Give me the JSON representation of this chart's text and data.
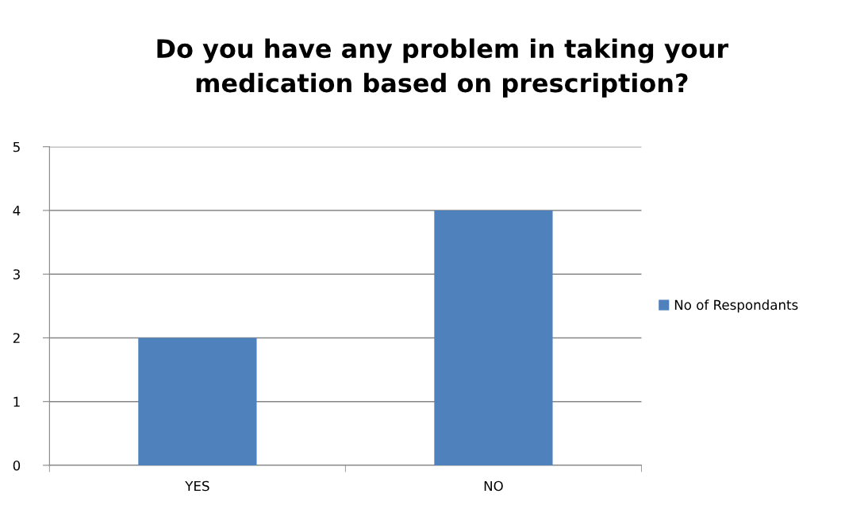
{
  "chart_data": {
    "type": "bar",
    "title": "Do you have any problem in taking your\nmedication based on prescription?",
    "categories": [
      "YES",
      "NO"
    ],
    "series": [
      {
        "name": "No of Respondants",
        "color": "#4f81bd",
        "values": [
          2,
          4
        ]
      }
    ],
    "ylim": [
      0,
      5
    ],
    "yticks": [
      0,
      1,
      2,
      3,
      4,
      5
    ],
    "grid": "y",
    "legend": "right"
  }
}
